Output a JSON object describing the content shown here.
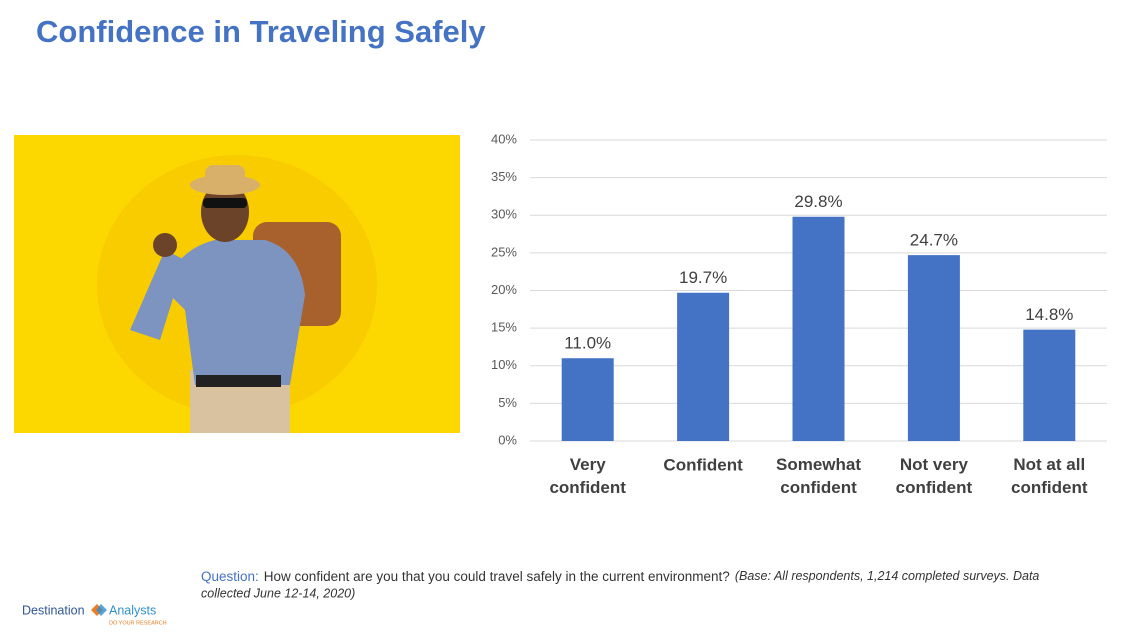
{
  "chart_data": {
    "type": "bar",
    "title": "Confidence in Traveling Safely",
    "categories": [
      "Very confident",
      "Confident",
      "Somewhat confident",
      "Not very confident",
      "Not at all confident"
    ],
    "values": [
      11.0,
      19.7,
      29.8,
      24.7,
      14.8
    ],
    "value_labels": [
      "11.0%",
      "19.7%",
      "29.8%",
      "24.7%",
      "14.8%"
    ],
    "color": "#4472c4",
    "ylim": [
      0,
      40
    ],
    "yticks": [
      {
        "value": 0,
        "label": "0%"
      },
      {
        "value": 5,
        "label": "5%"
      },
      {
        "value": 10,
        "label": "10%"
      },
      {
        "value": 15,
        "label": "15%"
      },
      {
        "value": 20,
        "label": "20%"
      },
      {
        "value": 25,
        "label": "25%"
      },
      {
        "value": 30,
        "label": "30%"
      },
      {
        "value": 35,
        "label": "35%"
      },
      {
        "value": 40,
        "label": "40%"
      }
    ],
    "grid": true
  },
  "footer": {
    "question_label": "Question:",
    "question": "How confident are you that you could travel safely in the current environment?",
    "base_note_1": "(Base: All respondents, 1,214 completed surveys. Data",
    "base_note_2": "collected June 12-14, 2020)"
  },
  "logo": {
    "name_1": "Destination",
    "name_2": "Analysts",
    "tagline": "DO YOUR RESEARCH"
  }
}
